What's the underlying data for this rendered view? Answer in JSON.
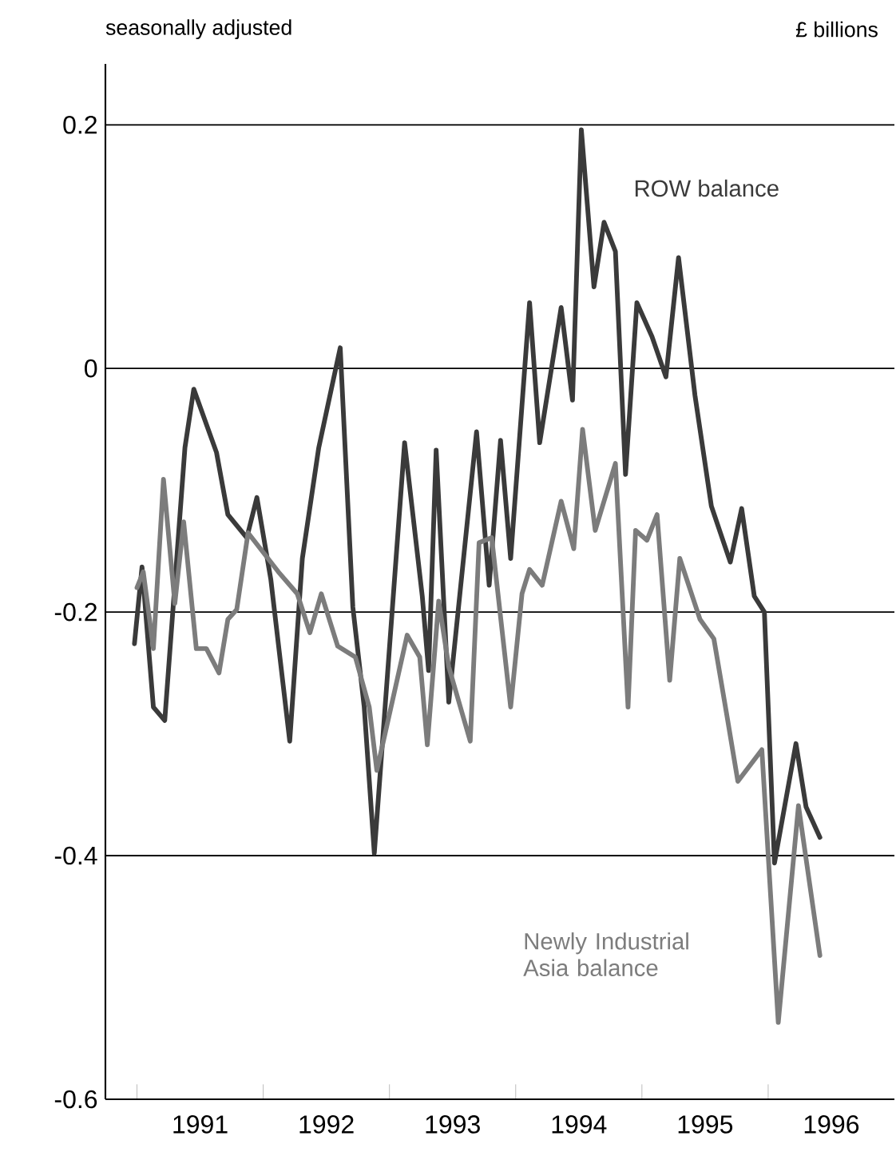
{
  "chart_data": {
    "type": "line",
    "annotations": [
      "seasonally adjusted",
      "£ billions"
    ],
    "xlim": [
      1990.75,
      1997
    ],
    "ylim": [
      -0.6,
      0.25
    ],
    "xticks": [
      {
        "value": 1991,
        "label": null
      },
      {
        "value": 1992,
        "label": null
      },
      {
        "value": 1993,
        "label": null
      },
      {
        "value": 1994,
        "label": null
      },
      {
        "value": 1995,
        "label": null
      },
      {
        "value": 1996,
        "label": null
      },
      {
        "value": 1991.5,
        "label": "1991"
      },
      {
        "value": 1992.5,
        "label": "1992"
      },
      {
        "value": 1993.5,
        "label": "1993"
      },
      {
        "value": 1994.5,
        "label": "1994"
      },
      {
        "value": 1995.5,
        "label": "1995"
      },
      {
        "value": 1996.5,
        "label": "1996"
      }
    ],
    "yticks": [
      -0.6,
      -0.4,
      -0.2,
      0,
      0.2
    ],
    "grid": "y",
    "legend": false,
    "marker": "none",
    "line_style": "solid",
    "series": [
      {
        "name": "ROW balance",
        "color": "#3a3a3a",
        "x": [
          1990.98,
          1991.04,
          1991.13,
          1991.22,
          1991.38,
          1991.45,
          1991.63,
          1991.72,
          1991.87,
          1991.95,
          1992.06,
          1992.21,
          1992.31,
          1992.44,
          1992.61,
          1992.71,
          1992.8,
          1992.88,
          1993.12,
          1993.26,
          1993.31,
          1993.37,
          1993.47,
          1993.56,
          1993.69,
          1993.79,
          1993.88,
          1993.96,
          1994.11,
          1994.19,
          1994.36,
          1994.45,
          1994.52,
          1994.62,
          1994.7,
          1994.79,
          1994.87,
          1994.96,
          1995.08,
          1995.19,
          1995.29,
          1995.42,
          1995.55,
          1995.7,
          1995.79,
          1995.89,
          1995.97,
          1996.05,
          1996.22,
          1996.3,
          1996.41
        ],
        "values": [
          -0.226,
          -0.163,
          -0.278,
          -0.289,
          -0.065,
          -0.017,
          -0.069,
          -0.12,
          -0.139,
          -0.106,
          -0.173,
          -0.306,
          -0.156,
          -0.065,
          0.017,
          -0.196,
          -0.278,
          -0.398,
          -0.061,
          -0.187,
          -0.248,
          -0.067,
          -0.274,
          -0.183,
          -0.052,
          -0.178,
          -0.059,
          -0.156,
          0.054,
          -0.061,
          0.05,
          -0.026,
          0.196,
          0.067,
          0.12,
          0.096,
          -0.087,
          0.054,
          0.026,
          -0.007,
          0.091,
          -0.022,
          -0.113,
          -0.159,
          -0.115,
          -0.187,
          -0.2,
          -0.406,
          -0.308,
          -0.36,
          -0.385
        ]
      },
      {
        "name": "Newly Industrial Asia balance",
        "color": "#7c7c7c",
        "x": [
          1991.0,
          1991.05,
          1991.13,
          1991.21,
          1991.3,
          1991.37,
          1991.47,
          1991.55,
          1991.65,
          1991.72,
          1991.79,
          1991.88,
          1992.12,
          1992.27,
          1992.37,
          1992.46,
          1992.59,
          1992.73,
          1992.84,
          1992.9,
          1993.14,
          1993.24,
          1993.3,
          1993.39,
          1993.47,
          1993.64,
          1993.71,
          1993.81,
          1993.96,
          1994.05,
          1994.11,
          1994.21,
          1994.36,
          1994.46,
          1994.53,
          1994.63,
          1994.79,
          1994.89,
          1994.95,
          1995.04,
          1995.12,
          1995.22,
          1995.3,
          1995.46,
          1995.57,
          1995.67,
          1995.76,
          1995.95,
          1996.08,
          1996.24,
          1996.41
        ],
        "values": [
          -0.18,
          -0.167,
          -0.23,
          -0.091,
          -0.193,
          -0.126,
          -0.23,
          -0.23,
          -0.25,
          -0.206,
          -0.198,
          -0.135,
          -0.167,
          -0.185,
          -0.217,
          -0.185,
          -0.228,
          -0.237,
          -0.278,
          -0.33,
          -0.219,
          -0.237,
          -0.309,
          -0.191,
          -0.245,
          -0.306,
          -0.143,
          -0.139,
          -0.278,
          -0.185,
          -0.165,
          -0.178,
          -0.109,
          -0.148,
          -0.05,
          -0.133,
          -0.078,
          -0.278,
          -0.133,
          -0.141,
          -0.12,
          -0.256,
          -0.156,
          -0.206,
          -0.222,
          -0.283,
          -0.339,
          -0.313,
          -0.537,
          -0.359,
          -0.482
        ]
      }
    ]
  }
}
